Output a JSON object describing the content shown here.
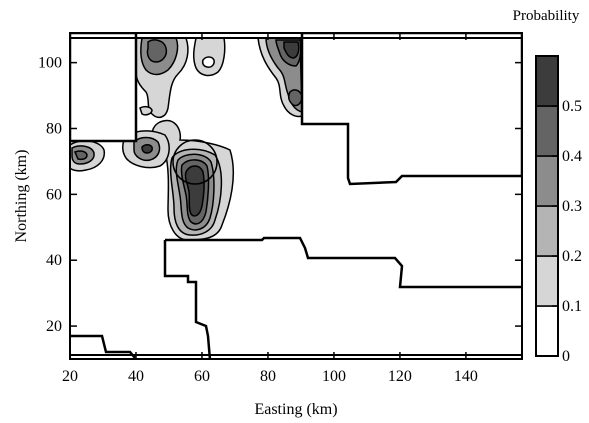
{
  "chart_data": {
    "type": "contour",
    "colorbar_title": "Probability",
    "xlabel": "Easting (km)",
    "ylabel": "Northing (km)",
    "xlim": [
      20,
      157
    ],
    "ylim": [
      10,
      109
    ],
    "x_ticks": [
      20,
      40,
      60,
      80,
      100,
      120,
      140
    ],
    "y_ticks": [
      20,
      40,
      60,
      80,
      100
    ],
    "x_tick_labels": [
      "20",
      "40",
      "60",
      "80",
      "100",
      "120",
      "140"
    ],
    "y_tick_labels": [
      "20",
      "40",
      "60",
      "80",
      "100"
    ],
    "colorbar": {
      "levels": [
        0,
        0.1,
        0.2,
        0.3,
        0.4,
        0.5,
        0.6
      ],
      "tick_labels": [
        "0",
        "0.1",
        "0.2",
        "0.3",
        "0.4",
        "0.5"
      ],
      "colors": [
        "#ffffff",
        "#d6d6d6",
        "#b4b4b4",
        "#8c8c8c",
        "#646464",
        "#3c3c3c"
      ]
    },
    "boundary_lines": [
      {
        "name": "upper-left-block",
        "points": [
          [
            20,
            109
          ],
          [
            40,
            109
          ],
          [
            40,
            77
          ],
          [
            20,
            77
          ]
        ]
      },
      {
        "name": "right-region",
        "points": [
          [
            91,
            109
          ],
          [
            91,
            77
          ],
          [
            104,
            77
          ],
          [
            104,
            67
          ],
          [
            105,
            65
          ],
          [
            118,
            65
          ],
          [
            122,
            66
          ],
          [
            157,
            66
          ]
        ]
      },
      {
        "name": "middle-region",
        "points": [
          [
            63,
            46
          ],
          [
            77,
            46
          ],
          [
            79,
            47
          ],
          [
            90,
            47
          ],
          [
            91,
            41
          ],
          [
            122,
            41
          ],
          [
            123,
            39
          ],
          [
            122,
            32
          ],
          [
            157,
            32
          ]
        ]
      },
      {
        "name": "central-shaft",
        "points": [
          [
            50,
            46
          ],
          [
            50,
            35
          ],
          [
            57,
            35
          ],
          [
            57,
            18
          ],
          [
            62,
            15
          ],
          [
            63,
            10
          ]
        ]
      },
      {
        "name": "bottom-left",
        "points": [
          [
            20,
            17
          ],
          [
            30,
            17
          ],
          [
            31,
            12
          ],
          [
            40,
            11
          ]
        ]
      }
    ],
    "probability_regions": [
      {
        "name": "hotspot-center",
        "x": 58,
        "y": 61,
        "peak": 0.55
      },
      {
        "name": "hotspot-top-right",
        "x": 89,
        "y": 100,
        "peak": 0.52
      },
      {
        "name": "hotspot-upper-left",
        "x": 47,
        "y": 104,
        "peak": 0.35
      },
      {
        "name": "hotspot-left",
        "x": 43,
        "y": 73,
        "peak": 0.42
      },
      {
        "name": "hotspot-far-left",
        "x": 23,
        "y": 72,
        "peak": 0.32
      },
      {
        "name": "hotspot-top-mid",
        "x": 62,
        "y": 101,
        "peak": 0.22
      }
    ]
  }
}
